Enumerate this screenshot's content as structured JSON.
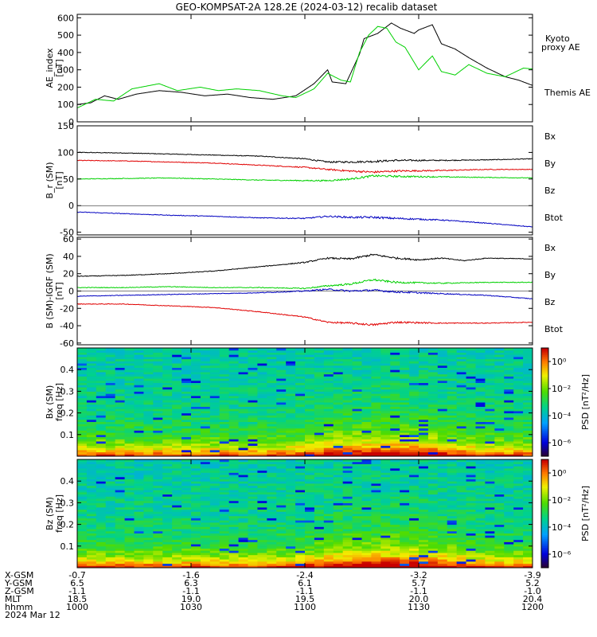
{
  "chart_data": {
    "title": "GEO-KOMPSAT-2A 128.2E (2024-03-12) recalib dataset",
    "date_label": "2024 Mar 12",
    "colors": {
      "black": "#000000",
      "green": "#00d000",
      "red": "#e00000",
      "blue": "#0000c0"
    },
    "panels": [
      {
        "type": "line",
        "ylabel": "AE_index",
        "yunit": "[nT]",
        "yrange": [
          0,
          620
        ],
        "yticks": [
          "0",
          "100",
          "200",
          "300",
          "400",
          "500",
          "600"
        ],
        "ytick_values": [
          0,
          100,
          200,
          300,
          400,
          500,
          600
        ],
        "legend": [
          {
            "label": "Kyoto",
            "color": "green"
          },
          {
            "label": "proxy AE",
            "color": "green"
          },
          {
            "label": "Themis AE",
            "color": "black"
          }
        ],
        "series": [
          {
            "name": "Themis AE",
            "color": "black",
            "x": [
              0,
              0.03,
              0.06,
              0.09,
              0.13,
              0.18,
              0.23,
              0.28,
              0.33,
              0.38,
              0.43,
              0.48,
              0.52,
              0.55,
              0.56,
              0.59,
              0.62,
              0.63,
              0.66,
              0.69,
              0.71,
              0.74,
              0.75,
              0.78,
              0.8,
              0.83,
              0.86,
              0.88,
              0.9,
              0.94,
              0.97,
              1
            ],
            "y": [
              100,
              110,
              150,
              130,
              160,
              180,
              170,
              150,
              160,
              140,
              130,
              150,
              220,
              300,
              230,
              220,
              390,
              480,
              510,
              570,
              540,
              510,
              530,
              560,
              450,
              420,
              370,
              340,
              310,
              260,
              240,
              210
            ]
          },
          {
            "name": "Kyoto proxy AE",
            "color": "green",
            "x": [
              0,
              0.04,
              0.08,
              0.12,
              0.18,
              0.22,
              0.27,
              0.31,
              0.35,
              0.4,
              0.45,
              0.48,
              0.52,
              0.55,
              0.58,
              0.6,
              0.62,
              0.64,
              0.66,
              0.68,
              0.7,
              0.72,
              0.75,
              0.78,
              0.8,
              0.83,
              0.86,
              0.9,
              0.94,
              0.98,
              1
            ],
            "y": [
              80,
              130,
              120,
              190,
              220,
              180,
              200,
              180,
              190,
              180,
              150,
              140,
              190,
              280,
              240,
              230,
              400,
              500,
              550,
              540,
              460,
              430,
              300,
              380,
              290,
              270,
              330,
              280,
              260,
              310,
              305
            ]
          }
        ]
      },
      {
        "type": "line",
        "ylabel": "B_r (SM)",
        "yunit": "[nT]",
        "yrange": [
          -55,
          150
        ],
        "yticks": [
          "-50",
          "0",
          "50",
          "100",
          "150"
        ],
        "ytick_values": [
          -50,
          0,
          50,
          100,
          150
        ],
        "legend": [
          {
            "label": "Bx",
            "color": "blue"
          },
          {
            "label": "By",
            "color": "green"
          },
          {
            "label": "Bz",
            "color": "red"
          },
          {
            "label": "Btot",
            "color": "black"
          }
        ],
        "series": [
          {
            "name": "Btot",
            "color": "black",
            "x": [
              0,
              0.1,
              0.2,
              0.3,
              0.4,
              0.5,
              0.55,
              0.6,
              0.65,
              0.7,
              0.8,
              0.9,
              1
            ],
            "y": [
              100,
              99,
              97,
              95,
              93,
              88,
              82,
              82,
              83,
              85,
              85,
              86,
              88
            ]
          },
          {
            "name": "Bz",
            "color": "red",
            "x": [
              0,
              0.1,
              0.2,
              0.3,
              0.4,
              0.5,
              0.55,
              0.6,
              0.65,
              0.7,
              0.8,
              0.9,
              1
            ],
            "y": [
              85,
              84,
              82,
              80,
              76,
              72,
              68,
              65,
              63,
              65,
              66,
              68,
              68
            ]
          },
          {
            "name": "By",
            "color": "green",
            "x": [
              0,
              0.1,
              0.2,
              0.3,
              0.4,
              0.5,
              0.55,
              0.6,
              0.65,
              0.7,
              0.8,
              0.9,
              1
            ],
            "y": [
              50,
              51,
              52,
              50,
              48,
              47,
              47,
              50,
              56,
              55,
              54,
              53,
              52
            ]
          },
          {
            "name": "Bx",
            "color": "blue",
            "x": [
              0,
              0.1,
              0.2,
              0.3,
              0.4,
              0.5,
              0.55,
              0.6,
              0.65,
              0.7,
              0.8,
              0.9,
              1
            ],
            "y": [
              -12,
              -15,
              -18,
              -20,
              -23,
              -24,
              -20,
              -22,
              -22,
              -24,
              -27,
              -33,
              -40
            ]
          }
        ]
      },
      {
        "type": "line",
        "ylabel": "B (SM)-IGRF (SM)",
        "yunit": "[nT]",
        "yrange": [
          -62,
          62
        ],
        "yticks": [
          "-60",
          "-40",
          "-20",
          "0",
          "20",
          "40",
          "60"
        ],
        "ytick_values": [
          -60,
          -40,
          -20,
          0,
          20,
          40,
          60
        ],
        "legend": [
          {
            "label": "Bx",
            "color": "blue"
          },
          {
            "label": "By",
            "color": "green"
          },
          {
            "label": "Bz",
            "color": "red"
          },
          {
            "label": "Btot",
            "color": "black"
          }
        ],
        "series": [
          {
            "name": "Btot",
            "color": "black",
            "x": [
              0,
              0.1,
              0.2,
              0.3,
              0.4,
              0.5,
              0.55,
              0.6,
              0.65,
              0.7,
              0.75,
              0.8,
              0.85,
              0.9,
              1
            ],
            "y": [
              17,
              18,
              20,
              23,
              28,
              33,
              38,
              37,
              42,
              38,
              36,
              38,
              35,
              38,
              37
            ]
          },
          {
            "name": "By",
            "color": "green",
            "x": [
              0,
              0.1,
              0.2,
              0.3,
              0.4,
              0.5,
              0.55,
              0.6,
              0.65,
              0.7,
              0.8,
              0.9,
              1
            ],
            "y": [
              4,
              4,
              5,
              4,
              4,
              3,
              6,
              8,
              13,
              10,
              9,
              10,
              10
            ]
          },
          {
            "name": "Bx",
            "color": "blue",
            "x": [
              0,
              0.1,
              0.2,
              0.3,
              0.4,
              0.5,
              0.55,
              0.6,
              0.65,
              0.7,
              0.8,
              0.9,
              1
            ],
            "y": [
              -6,
              -5,
              -4,
              -3,
              -2,
              0,
              2,
              0,
              1,
              -1,
              -3,
              -5,
              -9
            ]
          },
          {
            "name": "Bz",
            "color": "red",
            "x": [
              0,
              0.1,
              0.2,
              0.3,
              0.4,
              0.5,
              0.55,
              0.6,
              0.65,
              0.7,
              0.8,
              0.9,
              1
            ],
            "y": [
              -15,
              -15,
              -17,
              -19,
              -24,
              -30,
              -36,
              -37,
              -39,
              -36,
              -37,
              -37,
              -36
            ]
          }
        ]
      },
      {
        "type": "heatmap",
        "ylabel": "Bx (SM)",
        "yunit": "freq [Hz]",
        "yrange": [
          0,
          0.5
        ],
        "yticks": [
          "0.1",
          "0.2",
          "0.3",
          "0.4"
        ],
        "ytick_values": [
          0.1,
          0.2,
          0.3,
          0.4
        ],
        "colorbar_label": "PSD [nT²/Hz]",
        "colorbar_ticks": [
          "10⁰",
          "10⁻²",
          "10⁻⁴",
          "10⁻⁶"
        ],
        "colorbar_range_log10": [
          -7,
          1
        ],
        "colorbar_tick_values": [
          0,
          -2,
          -4,
          -6
        ]
      },
      {
        "type": "heatmap",
        "ylabel": "Bz (SM)",
        "yunit": "freq [Hz]",
        "yrange": [
          0,
          0.5
        ],
        "yticks": [
          "0.1",
          "0.2",
          "0.3",
          "0.4"
        ],
        "ytick_values": [
          0.1,
          0.2,
          0.3,
          0.4
        ],
        "colorbar_label": "PSD [nT²/Hz]",
        "colorbar_ticks": [
          "10⁰",
          "10⁻²",
          "10⁻⁴",
          "10⁻⁶"
        ],
        "colorbar_range_log10": [
          -7,
          1
        ],
        "colorbar_tick_values": [
          0,
          -2,
          -4,
          -6
        ]
      }
    ],
    "x_axis": {
      "row_labels": [
        "X-GSM",
        "Y-GSM",
        "Z-GSM",
        "MLT",
        "hhmm"
      ],
      "ticks": [
        {
          "values": [
            "-0.7",
            "6.5",
            "-1.1",
            "18.5",
            "1000"
          ]
        },
        {
          "values": [
            "-1.6",
            "6.3",
            "-1.1",
            "19.0",
            "1030"
          ]
        },
        {
          "values": [
            "-2.4",
            "6.1",
            "-1.1",
            "19.5",
            "1100"
          ]
        },
        {
          "values": [
            "-3.2",
            "5.7",
            "-1.1",
            "20.0",
            "1130"
          ]
        },
        {
          "values": [
            "-3.9",
            "5.2",
            "-1.0",
            "20.4",
            "1200"
          ]
        }
      ]
    }
  }
}
